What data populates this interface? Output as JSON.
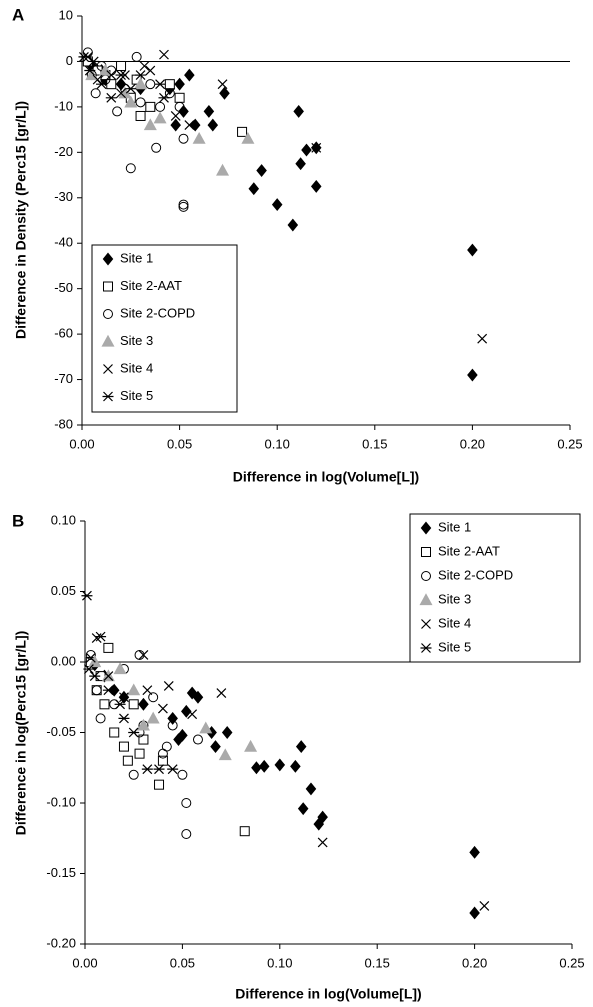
{
  "chart_data": [
    {
      "type": "scatter",
      "panel_label": "A",
      "xlabel": "Difference in log(Volume[L])",
      "ylabel": "Difference in Density (Perc15 [gr/L])",
      "xlim": [
        0,
        0.25
      ],
      "ylim": [
        -80,
        10
      ],
      "xticks": [
        {
          "value": 0,
          "label": "0.00"
        },
        {
          "value": 0.05,
          "label": "0.05"
        },
        {
          "value": 0.1,
          "label": "0.10"
        },
        {
          "value": 0.15,
          "label": "0.15"
        },
        {
          "value": 0.2,
          "label": "0.20"
        },
        {
          "value": 0.25,
          "label": "0.25"
        }
      ],
      "yticks": [
        10,
        0,
        -10,
        -20,
        -30,
        -40,
        -50,
        -60,
        -70,
        -80
      ],
      "legend_position": "lower left",
      "series": [
        {
          "name": "Site 1",
          "color": "#000000",
          "marker": "diamond",
          "x": [
            0.005,
            0.01,
            0.012,
            0.02,
            0.03,
            0.045,
            0.048,
            0.05,
            0.052,
            0.055,
            0.058,
            0.065,
            0.067,
            0.073,
            0.088,
            0.092,
            0.1,
            0.108,
            0.111,
            0.112,
            0.115,
            0.12,
            0.12,
            0.2,
            0.2
          ],
          "values": [
            -1,
            -2,
            -4,
            -5,
            -6,
            -6,
            -14,
            -5,
            -11,
            -3,
            -14,
            -11,
            -14,
            -7,
            -28,
            -24,
            -31.5,
            -36,
            -11,
            -22.5,
            -19.5,
            -27.5,
            -19,
            -41.5,
            -69
          ]
        },
        {
          "name": "Site 2-AAT",
          "color": "#000000",
          "marker": "square",
          "x": [
            0.003,
            0.008,
            0.012,
            0.015,
            0.02,
            0.025,
            0.028,
            0.03,
            0.035,
            0.045,
            0.05,
            0.082
          ],
          "values": [
            0,
            -2,
            -3,
            -5,
            -1,
            -8,
            -4,
            -12,
            -10,
            -5,
            -8,
            -15.5
          ]
        },
        {
          "name": "Site 2-COPD",
          "color": "#000000",
          "marker": "circle",
          "x": [
            0.003,
            0.005,
            0.007,
            0.01,
            0.012,
            0.018,
            0.022,
            0.025,
            0.03,
            0.035,
            0.038,
            0.04,
            0.045,
            0.05,
            0.052,
            0.052,
            0.052,
            0.028,
            0.015
          ],
          "values": [
            2,
            -3,
            -7,
            -1,
            -4,
            -11,
            -6,
            -23.5,
            -9,
            -5,
            -19,
            -10,
            -7,
            -10,
            -17,
            -31.5,
            -32,
            1,
            -2
          ]
        },
        {
          "name": "Site 3",
          "color": "#aaaaaa",
          "marker": "triangle",
          "x": [
            0.005,
            0.012,
            0.022,
            0.025,
            0.035,
            0.04,
            0.06,
            0.072,
            0.085,
            0.03
          ],
          "values": [
            -3,
            -2,
            -7,
            -9,
            -14,
            -12.5,
            -17,
            -24,
            -17,
            -5
          ]
        },
        {
          "name": "Site 4",
          "color": "#000000",
          "marker": "x",
          "x": [
            0.003,
            0.008,
            0.015,
            0.02,
            0.032,
            0.035,
            0.042,
            0.048,
            0.055,
            0.072,
            0.12,
            0.205,
            0.022
          ],
          "values": [
            1,
            -4,
            -3,
            -7,
            -1,
            -2,
            1.5,
            -12,
            -14,
            -5,
            -19,
            -61,
            -3
          ]
        },
        {
          "name": "Site 5",
          "color": "#000000",
          "marker": "star",
          "x": [
            0.001,
            0.004,
            0.006,
            0.01,
            0.015,
            0.02,
            0.025,
            0.04,
            0.042,
            0.03
          ],
          "values": [
            1,
            -2,
            0,
            -5,
            -8,
            -3,
            -6,
            -5,
            -8,
            -3
          ]
        }
      ]
    },
    {
      "type": "scatter",
      "panel_label": "B",
      "xlabel": "Difference in log(Volume[L])",
      "ylabel": "Difference in log(Perc15 [gr/L])",
      "xlim": [
        0,
        0.25
      ],
      "ylim": [
        -0.2,
        0.1
      ],
      "xticks": [
        {
          "value": 0,
          "label": "0.00"
        },
        {
          "value": 0.05,
          "label": "0.05"
        },
        {
          "value": 0.1,
          "label": "0.10"
        },
        {
          "value": 0.15,
          "label": "0.15"
        },
        {
          "value": 0.2,
          "label": "0.20"
        },
        {
          "value": 0.25,
          "label": "0.25"
        }
      ],
      "yticks": [
        {
          "value": 0.1,
          "label": "0.10"
        },
        {
          "value": 0.05,
          "label": "0.05"
        },
        {
          "value": 0,
          "label": "0.00"
        },
        {
          "value": -0.05,
          "label": "-0.05"
        },
        {
          "value": -0.1,
          "label": "-0.10"
        },
        {
          "value": -0.15,
          "label": "-0.15"
        },
        {
          "value": -0.2,
          "label": "-0.20"
        }
      ],
      "legend_position": "upper right",
      "series": [
        {
          "name": "Site 1",
          "color": "#000000",
          "marker": "diamond",
          "x": [
            0.005,
            0.01,
            0.015,
            0.02,
            0.03,
            0.045,
            0.048,
            0.05,
            0.052,
            0.055,
            0.058,
            0.065,
            0.067,
            0.073,
            0.088,
            0.092,
            0.1,
            0.108,
            0.111,
            0.112,
            0.116,
            0.12,
            0.122,
            0.2,
            0.2
          ],
          "values": [
            -0.002,
            -0.01,
            -0.02,
            -0.025,
            -0.03,
            -0.04,
            -0.055,
            -0.052,
            -0.035,
            -0.022,
            -0.025,
            -0.05,
            -0.06,
            -0.05,
            -0.075,
            -0.074,
            -0.073,
            -0.074,
            -0.06,
            -0.104,
            -0.09,
            -0.115,
            -0.11,
            -0.135,
            -0.178
          ]
        },
        {
          "name": "Site 2-AAT",
          "color": "#000000",
          "marker": "square",
          "x": [
            0.003,
            0.006,
            0.01,
            0.012,
            0.015,
            0.02,
            0.022,
            0.025,
            0.028,
            0.03,
            0.038,
            0.04,
            0.082,
            0.008
          ],
          "values": [
            0,
            -0.02,
            -0.03,
            0.01,
            -0.05,
            -0.06,
            -0.07,
            -0.03,
            -0.065,
            -0.055,
            -0.087,
            -0.07,
            -0.12,
            -0.01
          ]
        },
        {
          "name": "Site 2-COPD",
          "color": "#000000",
          "marker": "circle",
          "x": [
            0.003,
            0.006,
            0.008,
            0.015,
            0.02,
            0.025,
            0.028,
            0.03,
            0.035,
            0.04,
            0.042,
            0.045,
            0.05,
            0.052,
            0.052,
            0.058,
            0.028
          ],
          "values": [
            0.005,
            -0.02,
            -0.04,
            -0.03,
            -0.005,
            -0.08,
            0.005,
            -0.045,
            -0.025,
            -0.065,
            -0.06,
            -0.045,
            -0.08,
            -0.1,
            -0.122,
            -0.055,
            -0.05
          ]
        },
        {
          "name": "Site 3",
          "color": "#aaaaaa",
          "marker": "triangle",
          "x": [
            0.005,
            0.012,
            0.018,
            0.025,
            0.035,
            0.062,
            0.072,
            0.085,
            0.03
          ],
          "values": [
            0,
            -0.01,
            -0.005,
            -0.02,
            -0.04,
            -0.047,
            -0.066,
            -0.06,
            -0.045
          ]
        },
        {
          "name": "Site 4",
          "color": "#000000",
          "marker": "x",
          "x": [
            0.003,
            0.006,
            0.012,
            0.02,
            0.03,
            0.032,
            0.04,
            0.043,
            0.055,
            0.07,
            0.122,
            0.205
          ],
          "values": [
            0.003,
            0.017,
            -0.01,
            -0.025,
            0.005,
            -0.02,
            -0.033,
            -0.017,
            -0.037,
            -0.022,
            -0.128,
            -0.173
          ]
        },
        {
          "name": "Site 5",
          "color": "#000000",
          "marker": "star",
          "x": [
            0.001,
            0.002,
            0.005,
            0.008,
            0.012,
            0.018,
            0.025,
            0.032,
            0.038,
            0.045,
            0.02
          ],
          "values": [
            0.047,
            -0.005,
            -0.01,
            0.018,
            -0.02,
            -0.03,
            -0.05,
            -0.076,
            -0.076,
            -0.076,
            -0.04
          ]
        }
      ]
    }
  ]
}
